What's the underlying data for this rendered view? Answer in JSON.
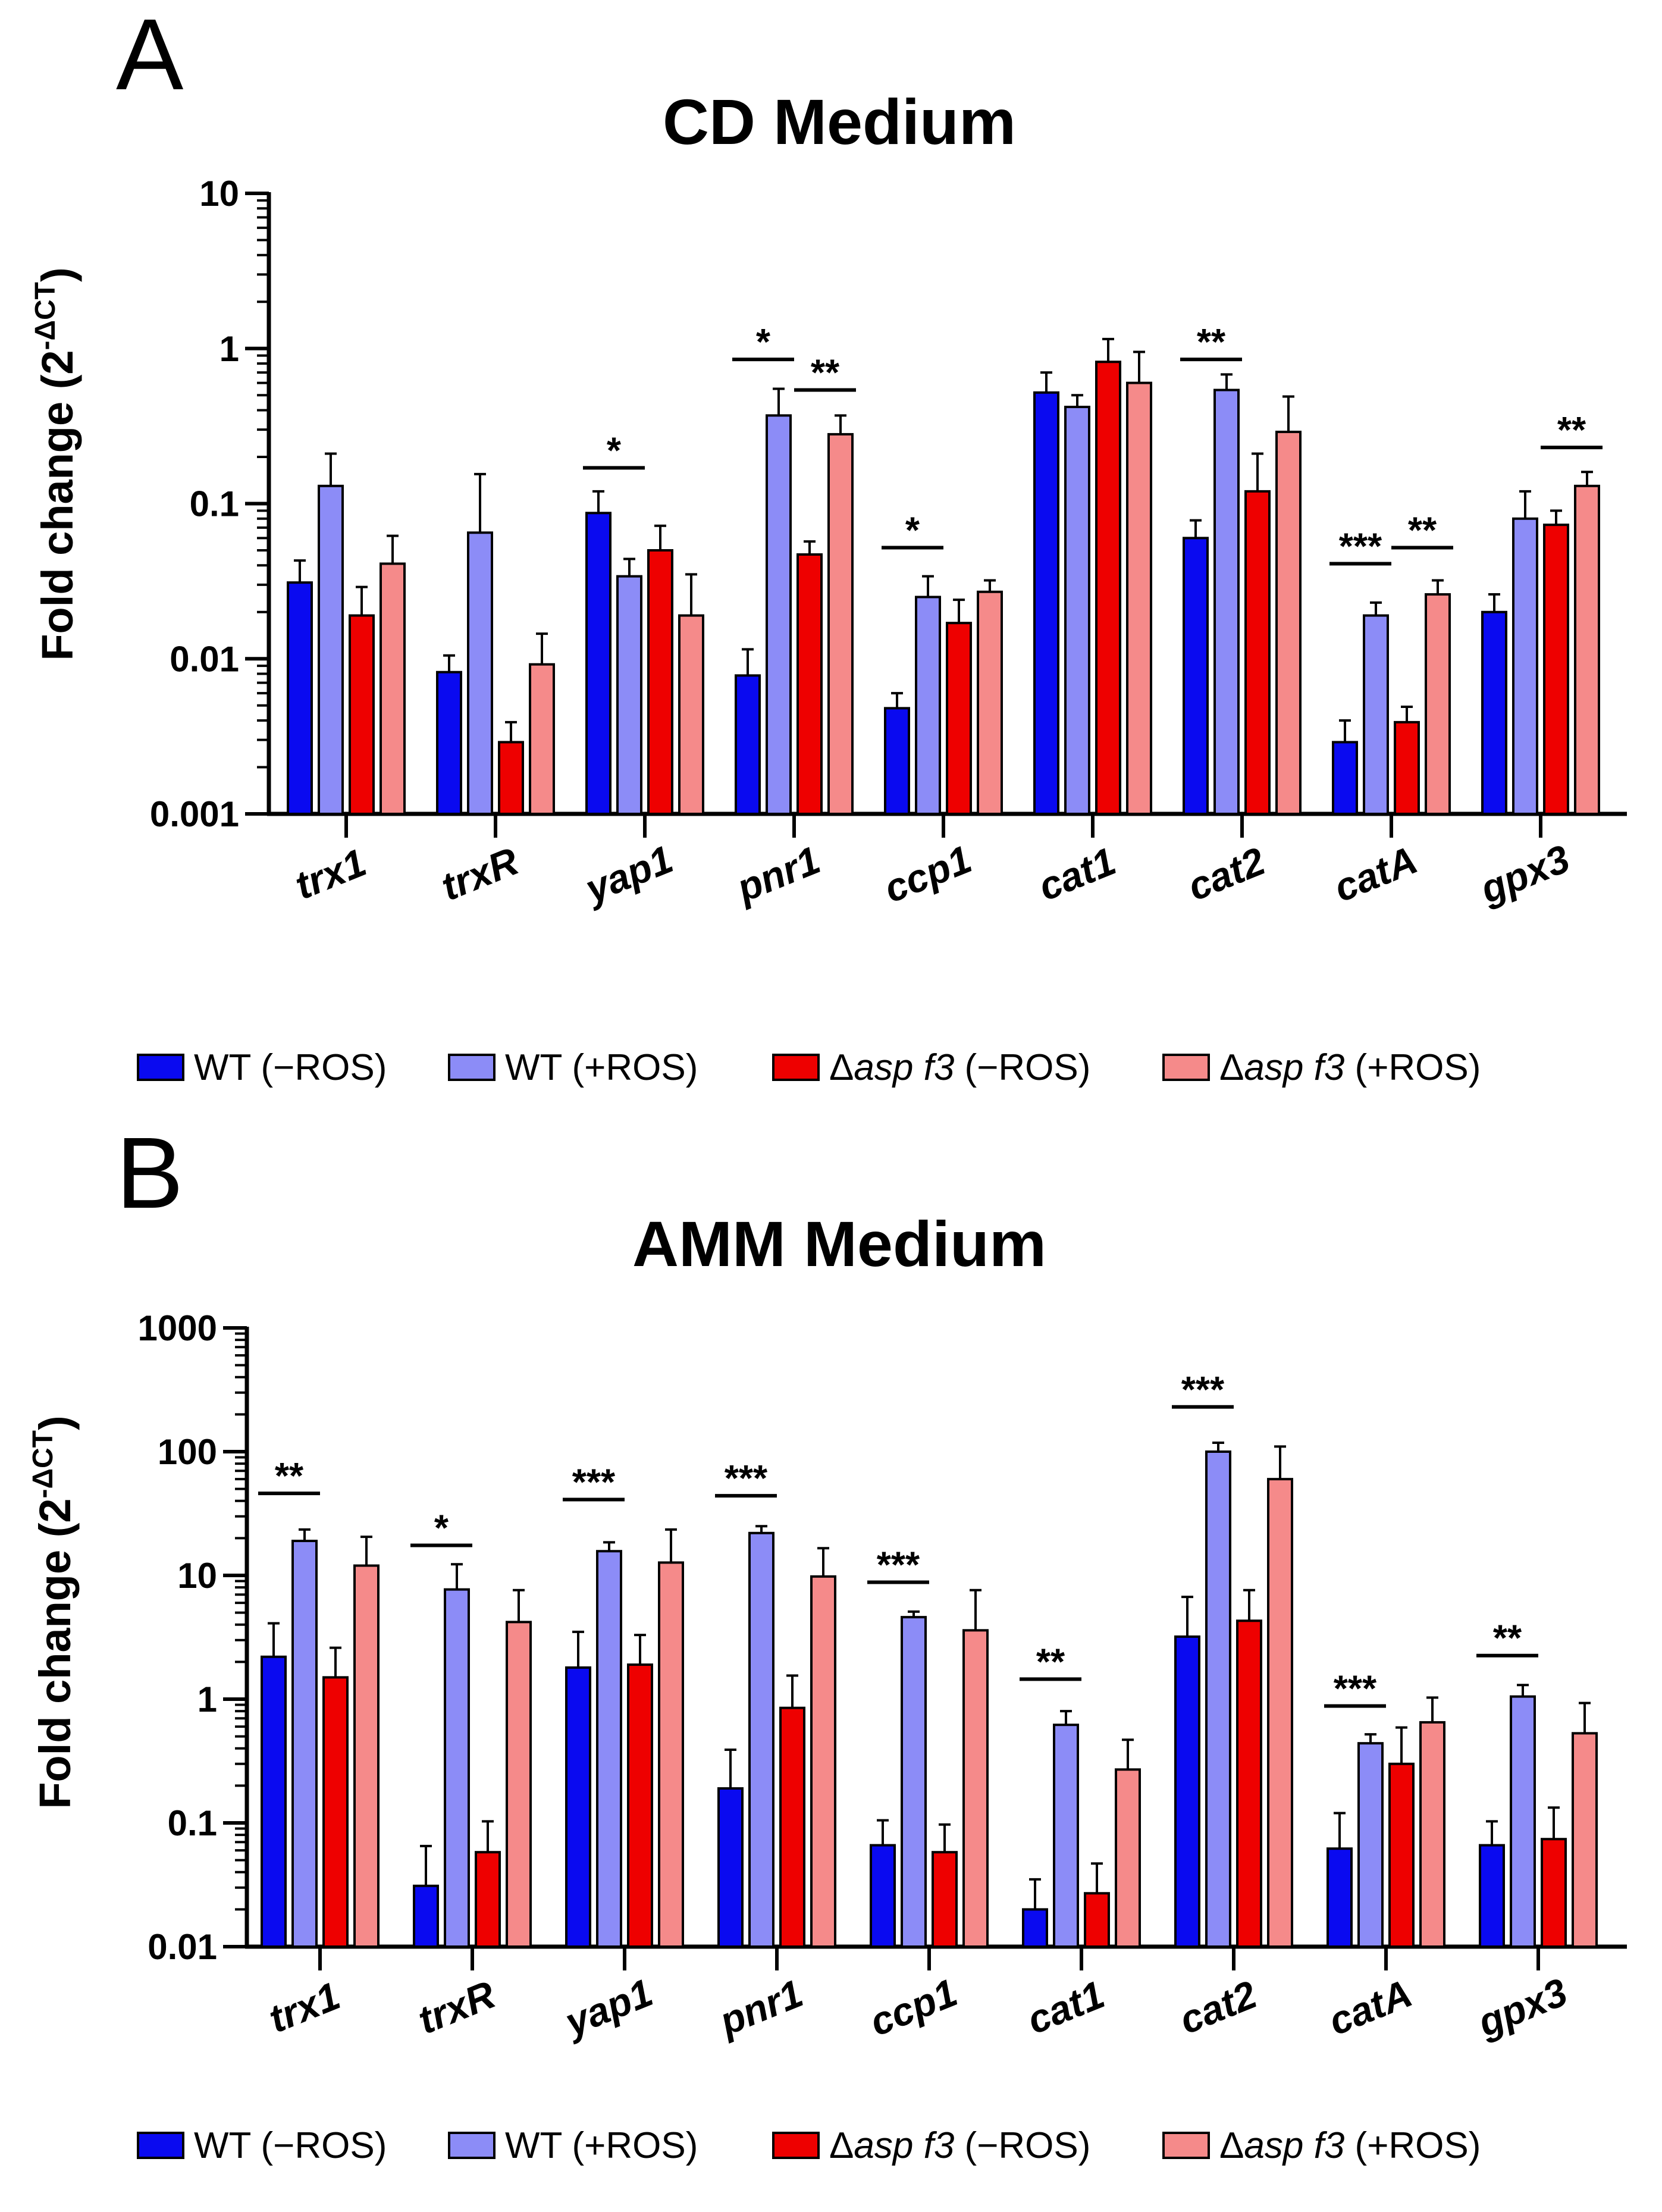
{
  "chart_data": [
    {
      "panel_label": "A",
      "type": "bar",
      "title": "CD Medium",
      "ylabel": "Fold change (2",
      "ylabel_exp": "-ΔCT",
      "ylabel_close": ")",
      "yscale": "log",
      "ylim": [
        0.001,
        10
      ],
      "yticks": [
        {
          "value": 10,
          "label": "10"
        },
        {
          "value": 1,
          "label": "1"
        },
        {
          "value": 0.1,
          "label": "0.1"
        },
        {
          "value": 0.01,
          "label": "0.01"
        },
        {
          "value": 0.001,
          "label": "0.001"
        }
      ],
      "categories": [
        "trx1",
        "trxR",
        "yap1",
        "pnr1",
        "ccp1",
        "cat1",
        "cat2",
        "catA",
        "gpx3"
      ],
      "series": [
        {
          "name": "WT (−ROS)",
          "color": "#0a0af0",
          "values": [
            0.031,
            0.0082,
            0.087,
            0.0078,
            0.0048,
            0.52,
            0.06,
            0.0029,
            0.02
          ],
          "errors": [
            0.043,
            0.0105,
            0.12,
            0.0115,
            0.006,
            0.7,
            0.078,
            0.004,
            0.026
          ]
        },
        {
          "name": "WT (+ROS)",
          "color": "#8c8cf7",
          "values": [
            0.13,
            0.065,
            0.034,
            0.37,
            0.025,
            0.42,
            0.54,
            0.019,
            0.08
          ],
          "errors": [
            0.21,
            0.155,
            0.044,
            0.55,
            0.034,
            0.5,
            0.68,
            0.023,
            0.12
          ]
        },
        {
          "name": "Δasp f3 (−ROS)",
          "color": "#ee0000",
          "values": [
            0.019,
            0.0029,
            0.05,
            0.047,
            0.017,
            0.82,
            0.12,
            0.0039,
            0.073
          ],
          "errors": [
            0.029,
            0.0039,
            0.072,
            0.057,
            0.024,
            1.15,
            0.21,
            0.0049,
            0.09
          ]
        },
        {
          "name": "Δasp f3 (+ROS)",
          "color": "#f58a8a",
          "values": [
            0.041,
            0.0092,
            0.019,
            0.28,
            0.027,
            0.6,
            0.29,
            0.026,
            0.13
          ],
          "errors": [
            0.062,
            0.0145,
            0.035,
            0.37,
            0.032,
            0.95,
            0.49,
            0.032,
            0.16
          ]
        }
      ],
      "significance": [
        {
          "category": 2,
          "from": 0,
          "to": 1,
          "label": "*",
          "level": 0.17
        },
        {
          "category": 3,
          "from": 0,
          "to": 1,
          "label": "*",
          "level": 0.85
        },
        {
          "category": 3,
          "from": 2,
          "to": 3,
          "label": "**",
          "level": 0.54
        },
        {
          "category": 4,
          "from": 0,
          "to": 1,
          "label": "*",
          "level": 0.052
        },
        {
          "category": 6,
          "from": 0,
          "to": 1,
          "label": "**",
          "level": 0.85
        },
        {
          "category": 7,
          "from": 0,
          "to": 1,
          "label": "***",
          "level": 0.041
        },
        {
          "category": 7,
          "from": 2,
          "to": 3,
          "label": "**",
          "level": 0.052
        },
        {
          "category": 8,
          "from": 2,
          "to": 3,
          "label": "**",
          "level": 0.23
        }
      ]
    },
    {
      "panel_label": "B",
      "type": "bar",
      "title": "AMM Medium",
      "ylabel": "Fold change (2",
      "ylabel_exp": "-ΔCT",
      "ylabel_close": ")",
      "yscale": "log",
      "ylim": [
        0.01,
        1000
      ],
      "yticks": [
        {
          "value": 1000,
          "label": "1000"
        },
        {
          "value": 100,
          "label": "100"
        },
        {
          "value": 10,
          "label": "10"
        },
        {
          "value": 1,
          "label": "1"
        },
        {
          "value": 0.1,
          "label": "0.1"
        },
        {
          "value": 0.01,
          "label": "0.01"
        }
      ],
      "categories": [
        "trx1",
        "trxR",
        "yap1",
        "pnr1",
        "ccp1",
        "cat1",
        "cat2",
        "catA",
        "gpx3"
      ],
      "series": [
        {
          "name": "WT (−ROS)",
          "color": "#0a0af0",
          "values": [
            2.2,
            0.031,
            1.8,
            0.19,
            0.066,
            0.02,
            3.2,
            0.062,
            0.066
          ],
          "errors": [
            4.1,
            0.065,
            3.5,
            0.39,
            0.105,
            0.035,
            6.7,
            0.12,
            0.103
          ]
        },
        {
          "name": "WT (+ROS)",
          "color": "#8c8cf7",
          "values": [
            19,
            7.7,
            15.7,
            22,
            4.6,
            0.62,
            100,
            0.44,
            1.05
          ],
          "errors": [
            23.5,
            12.3,
            18.5,
            25,
            5.1,
            0.8,
            118,
            0.52,
            1.3
          ]
        },
        {
          "name": "Δasp f3 (−ROS)",
          "color": "#ee0000",
          "values": [
            1.5,
            0.058,
            1.9,
            0.85,
            0.058,
            0.027,
            4.3,
            0.3,
            0.074
          ],
          "errors": [
            2.6,
            0.103,
            3.3,
            1.55,
            0.097,
            0.047,
            7.6,
            0.59,
            0.133
          ]
        },
        {
          "name": "Δasp f3 (+ROS)",
          "color": "#f58a8a",
          "values": [
            12,
            4.2,
            12.7,
            9.8,
            3.6,
            0.27,
            60,
            0.65,
            0.53
          ],
          "errors": [
            20.5,
            7.6,
            23.5,
            16.6,
            7.6,
            0.47,
            110,
            1.03,
            0.93
          ]
        }
      ],
      "significance": [
        {
          "category": 0,
          "from": 0,
          "to": 1,
          "label": "**",
          "level": 46
        },
        {
          "category": 1,
          "from": 0,
          "to": 1,
          "label": "*",
          "level": 17.5
        },
        {
          "category": 2,
          "from": 0,
          "to": 1,
          "label": "***",
          "level": 41
        },
        {
          "category": 3,
          "from": 0,
          "to": 1,
          "label": "***",
          "level": 44
        },
        {
          "category": 4,
          "from": 0,
          "to": 1,
          "label": "***",
          "level": 8.8
        },
        {
          "category": 5,
          "from": 0,
          "to": 1,
          "label": "**",
          "level": 1.45
        },
        {
          "category": 6,
          "from": 0,
          "to": 1,
          "label": "***",
          "level": 230
        },
        {
          "category": 7,
          "from": 0,
          "to": 1,
          "label": "***",
          "level": 0.88
        },
        {
          "category": 8,
          "from": 0,
          "to": 1,
          "label": "**",
          "level": 2.25
        }
      ]
    }
  ]
}
